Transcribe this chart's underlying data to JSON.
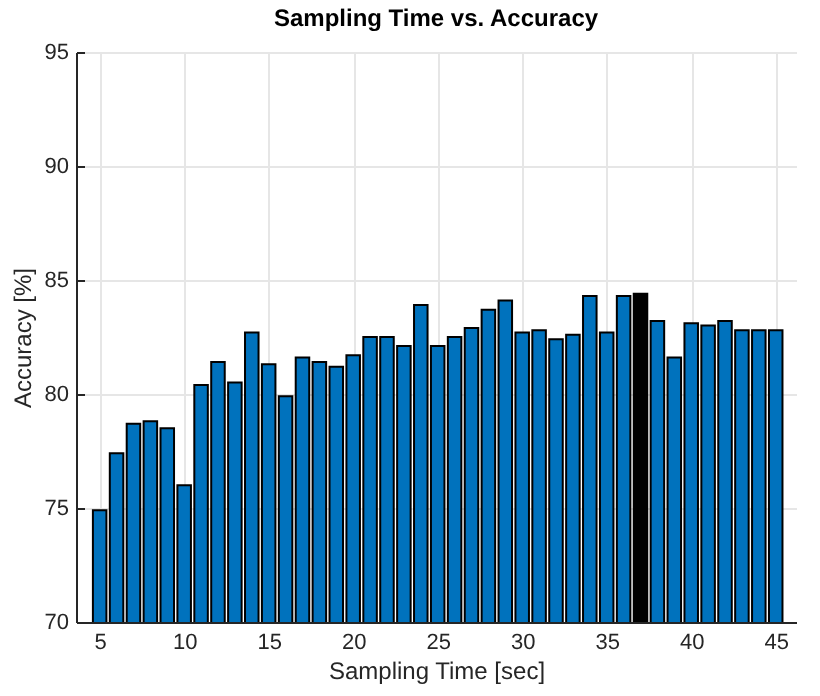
{
  "chart_data": {
    "type": "bar",
    "title": "Sampling Time vs. Accuracy",
    "xlabel": "Sampling Time [sec]",
    "ylabel": "Accuracy [%]",
    "x": [
      5,
      6,
      7,
      8,
      9,
      10,
      11,
      12,
      13,
      14,
      15,
      16,
      17,
      18,
      19,
      20,
      21,
      22,
      23,
      24,
      25,
      26,
      27,
      28,
      29,
      30,
      31,
      32,
      33,
      34,
      35,
      36,
      37,
      38,
      39,
      40,
      41,
      42,
      43,
      44,
      45
    ],
    "values": [
      74.9,
      77.4,
      78.7,
      78.8,
      78.5,
      76.0,
      80.4,
      81.4,
      80.5,
      82.7,
      81.3,
      79.9,
      81.6,
      81.4,
      81.2,
      81.7,
      82.5,
      82.5,
      82.1,
      83.9,
      82.1,
      82.5,
      82.9,
      83.7,
      84.1,
      82.7,
      82.8,
      82.4,
      82.6,
      84.3,
      82.7,
      84.3,
      84.4,
      83.2,
      81.6,
      83.1,
      83.0,
      83.2,
      82.8,
      82.8,
      82.8
    ],
    "colors": [
      "#0072bd",
      "#0072bd",
      "#0072bd",
      "#0072bd",
      "#0072bd",
      "#0072bd",
      "#0072bd",
      "#0072bd",
      "#0072bd",
      "#0072bd",
      "#0072bd",
      "#0072bd",
      "#0072bd",
      "#0072bd",
      "#0072bd",
      "#0072bd",
      "#0072bd",
      "#0072bd",
      "#0072bd",
      "#0072bd",
      "#0072bd",
      "#0072bd",
      "#0072bd",
      "#0072bd",
      "#0072bd",
      "#0072bd",
      "#0072bd",
      "#0072bd",
      "#0072bd",
      "#0072bd",
      "#0072bd",
      "#0072bd",
      "#000000",
      "#0072bd",
      "#0072bd",
      "#0072bd",
      "#0072bd",
      "#0072bd",
      "#0072bd",
      "#0072bd",
      "#0072bd"
    ],
    "xlim": [
      3.6,
      46.2
    ],
    "xticks": [
      5,
      10,
      15,
      20,
      25,
      30,
      35,
      40,
      45
    ],
    "ylim": [
      70,
      95
    ],
    "yticks": [
      70,
      75,
      80,
      85,
      90,
      95
    ],
    "grid": true
  }
}
